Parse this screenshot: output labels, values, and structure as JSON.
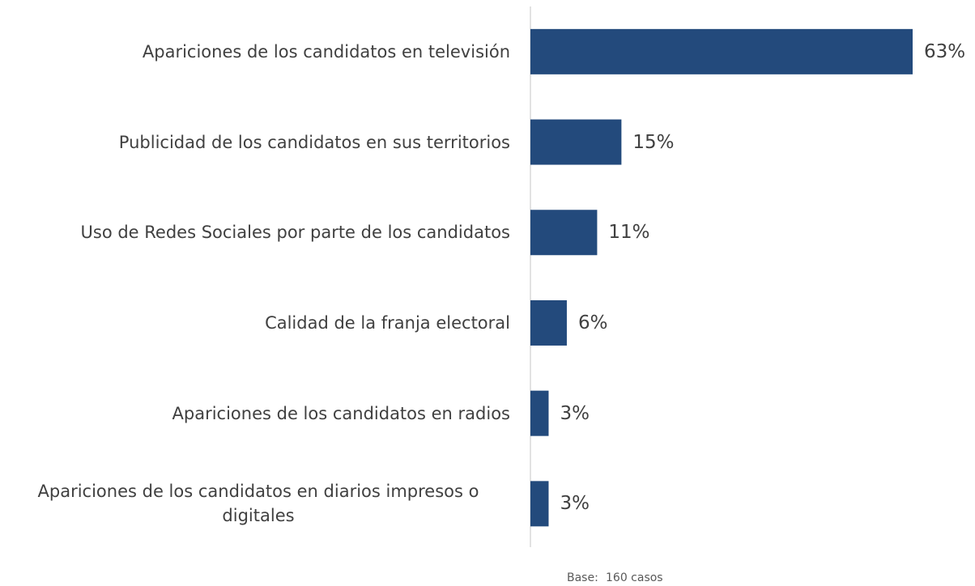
{
  "chart_data": {
    "type": "bar",
    "orientation": "horizontal",
    "categories": [
      "Apariciones de los candidatos en televisión",
      "Publicidad de los candidatos en sus territorios",
      "Uso de Redes Sociales por parte de los candidatos",
      "Calidad de la franja electoral",
      "Apariciones de los candidatos en radios",
      "Apariciones de los candidatos en diarios impresos o digitales"
    ],
    "values": [
      63,
      15,
      11,
      6,
      3,
      3
    ],
    "value_labels": [
      "63%",
      "15%",
      "11%",
      "6%",
      "3%",
      "3%"
    ],
    "color": "#234a7c",
    "footnote": {
      "label": "Base:",
      "text": "160 casos"
    }
  }
}
